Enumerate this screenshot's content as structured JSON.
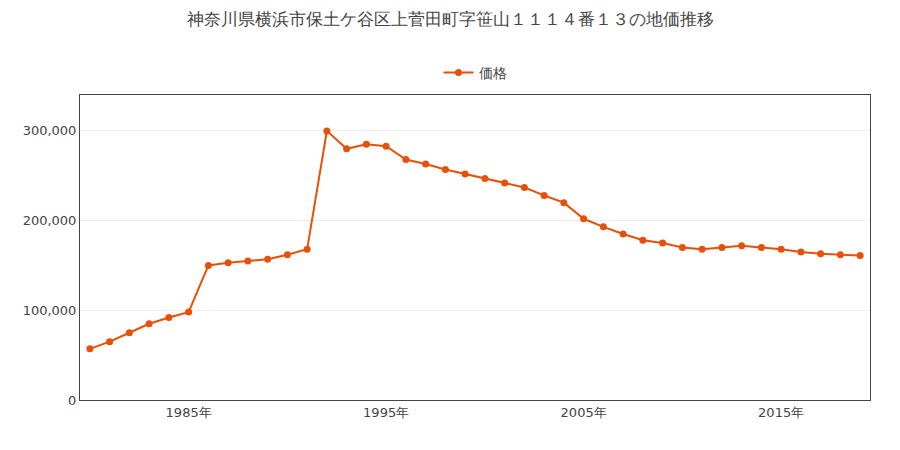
{
  "chart_data": {
    "type": "line",
    "title": "神奈川県横浜市保土ケ谷区上菅田町字笹山１１１４番１３の地価推移",
    "x": [
      1980,
      1981,
      1982,
      1983,
      1984,
      1985,
      1986,
      1987,
      1988,
      1989,
      1990,
      1991,
      1992,
      1993,
      1994,
      1995,
      1996,
      1997,
      1998,
      1999,
      2000,
      2001,
      2002,
      2003,
      2004,
      2005,
      2006,
      2007,
      2008,
      2009,
      2010,
      2011,
      2012,
      2013,
      2014,
      2015,
      2016,
      2017,
      2018,
      2019
    ],
    "series": [
      {
        "name": "価格",
        "color": "#E8500A",
        "marker": "circle",
        "values": [
          57000,
          65000,
          75000,
          85000,
          92000,
          98000,
          150000,
          153000,
          155000,
          157000,
          162000,
          168000,
          300000,
          280000,
          285000,
          283000,
          268000,
          263000,
          257000,
          252000,
          247000,
          242000,
          237000,
          228000,
          220000,
          202000,
          193000,
          185000,
          178000,
          175000,
          170000,
          168000,
          170000,
          172000,
          170000,
          168000,
          165000,
          163000,
          162000,
          161000
        ]
      }
    ],
    "xlim": [
      1979.5,
      2019.5
    ],
    "xticks": [
      {
        "value": 1985,
        "label": "1985年"
      },
      {
        "value": 1995,
        "label": "1995年"
      },
      {
        "value": 2005,
        "label": "2005年"
      },
      {
        "value": 2015,
        "label": "2015年"
      }
    ],
    "ylim": [
      0,
      340000
    ],
    "yticks": [
      0,
      {
        "value": 100000,
        "label": "100,000"
      },
      {
        "value": 200000,
        "label": "200,000"
      },
      {
        "value": 300000,
        "label": "300,000"
      }
    ],
    "grid": "y",
    "legend": "top"
  }
}
